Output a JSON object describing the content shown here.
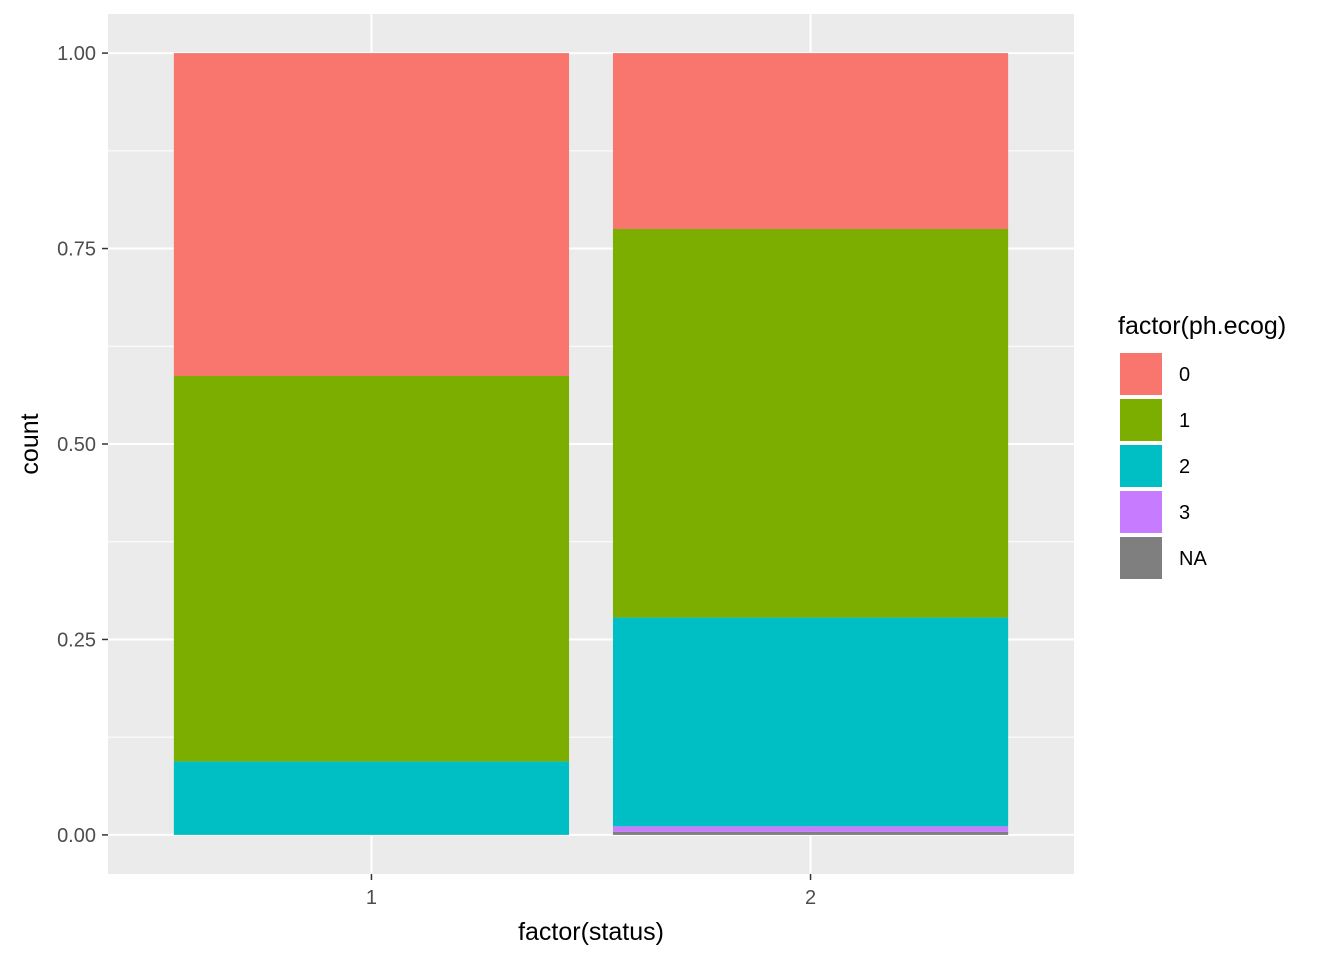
{
  "chart_data": {
    "type": "bar",
    "stacked": true,
    "position": "fill",
    "categories": [
      "1",
      "2"
    ],
    "series": [
      {
        "name": "NA",
        "color": "#7F7F7F",
        "values": [
          0,
          0.004
        ]
      },
      {
        "name": "3",
        "color": "#C77CFF",
        "values": [
          0,
          0.007
        ]
      },
      {
        "name": "2",
        "color": "#00BFC4",
        "values": [
          0.094,
          0.267
        ]
      },
      {
        "name": "1",
        "color": "#7CAE00",
        "values": [
          0.493,
          0.497
        ]
      },
      {
        "name": "0",
        "color": "#F8766D",
        "values": [
          0.413,
          0.225
        ]
      }
    ],
    "xlabel": "factor(status)",
    "ylabel": "count",
    "ylim": [
      -0.05,
      1.05
    ],
    "yticks": [
      {
        "value": 0,
        "label": "0.00"
      },
      {
        "value": 0.25,
        "label": "0.25"
      },
      {
        "value": 0.5,
        "label": "0.50"
      },
      {
        "value": 0.75,
        "label": "0.75"
      },
      {
        "value": 1,
        "label": "1.00"
      }
    ],
    "grid": true,
    "background": "#EBEBEB",
    "legend": {
      "title": "factor(ph.ecog)",
      "position": "right",
      "items": [
        {
          "label": "0",
          "color": "#F8766D"
        },
        {
          "label": "1",
          "color": "#7CAE00"
        },
        {
          "label": "2",
          "color": "#00BFC4"
        },
        {
          "label": "3",
          "color": "#C77CFF"
        },
        {
          "label": "NA",
          "color": "#7F7F7F"
        }
      ]
    }
  }
}
